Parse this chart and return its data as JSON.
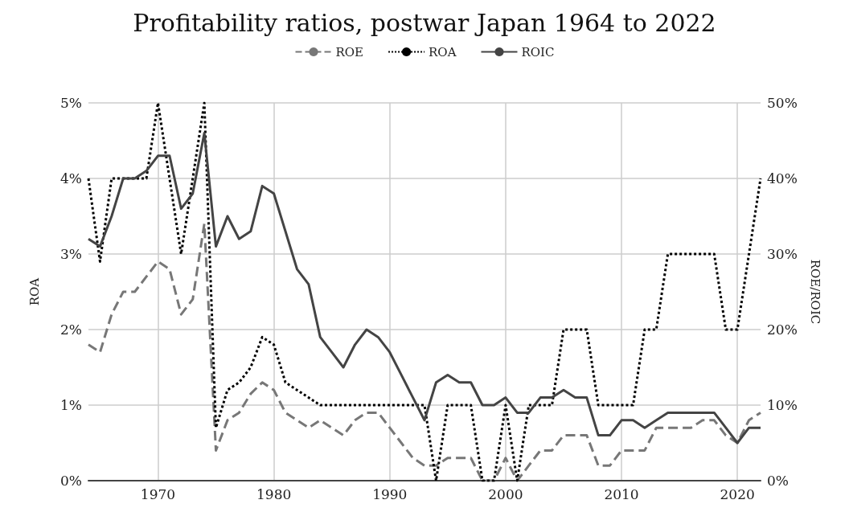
{
  "chart_data": {
    "type": "line",
    "title": "Profitability ratios, postwar Japan 1964 to 2022",
    "ylabel": "ROA",
    "y2label": "ROE/ROIC",
    "x": [
      1964,
      1965,
      1966,
      1967,
      1968,
      1969,
      1970,
      1971,
      1972,
      1973,
      1974,
      1975,
      1976,
      1977,
      1978,
      1979,
      1980,
      1981,
      1982,
      1983,
      1984,
      1985,
      1986,
      1987,
      1988,
      1989,
      1990,
      1991,
      1992,
      1993,
      1994,
      1995,
      1996,
      1997,
      1998,
      1999,
      2000,
      2001,
      2002,
      2003,
      2004,
      2005,
      2006,
      2007,
      2008,
      2009,
      2010,
      2011,
      2012,
      2013,
      2014,
      2015,
      2016,
      2017,
      2018,
      2019,
      2020,
      2021,
      2022
    ],
    "series": [
      {
        "name": "ROE",
        "color": "#777777",
        "line_style": "dashed",
        "axis": "y2",
        "values": [
          18,
          17,
          22,
          25,
          25,
          27,
          29,
          28,
          22,
          24,
          34,
          4,
          8,
          9,
          11.5,
          13,
          12,
          9,
          8,
          7,
          8,
          7,
          6,
          8,
          9,
          9,
          7,
          5,
          3,
          2,
          2,
          3,
          3,
          3,
          0,
          0,
          3,
          0,
          2,
          4,
          4,
          6,
          6,
          6,
          2,
          2,
          4,
          4,
          4,
          7,
          7,
          7,
          7,
          8,
          8,
          6,
          5,
          8,
          9
        ]
      },
      {
        "name": "ROA",
        "color": "#000000",
        "line_style": "dotted",
        "values": [
          4,
          2.9,
          4,
          4,
          4,
          4,
          5,
          4,
          3,
          4,
          5,
          0.7,
          1.2,
          1.3,
          1.5,
          1.9,
          1.8,
          1.3,
          1.2,
          1.1,
          1,
          1,
          1,
          1,
          1,
          1,
          1,
          1,
          1,
          1,
          0,
          1,
          1,
          1,
          0,
          0,
          1,
          0,
          1,
          1,
          1,
          2,
          2,
          2,
          1,
          1,
          1,
          1,
          2,
          2,
          3,
          3,
          3,
          3,
          3,
          2,
          2,
          3,
          4
        ]
      },
      {
        "name": "ROIC",
        "color": "#444444",
        "line_style": "solid",
        "axis": "y2",
        "values": [
          32,
          31,
          35,
          40,
          40,
          41,
          43,
          43,
          36,
          38,
          46,
          31,
          35,
          32,
          33,
          39,
          38,
          33,
          28,
          26,
          19,
          17,
          15,
          18,
          20,
          19,
          17,
          14,
          11,
          8,
          13,
          14,
          13,
          13,
          10,
          10,
          11,
          9,
          9,
          11,
          11,
          12,
          11,
          11,
          6,
          6,
          8,
          8,
          7,
          8,
          9,
          9,
          9,
          9,
          9,
          7,
          5,
          7,
          7
        ]
      }
    ],
    "xlim": [
      1964,
      2022
    ],
    "xticks": [
      1970,
      1980,
      1990,
      2000,
      2010,
      2020
    ],
    "ylim": [
      0,
      5
    ],
    "yticks": [
      {
        "value": 0,
        "label": "0%"
      },
      {
        "value": 1,
        "label": "1%"
      },
      {
        "value": 2,
        "label": "2%"
      },
      {
        "value": 3,
        "label": "3%"
      },
      {
        "value": 4,
        "label": "4%"
      },
      {
        "value": 5,
        "label": "5%"
      }
    ],
    "y2lim": [
      0,
      50
    ],
    "y2ticks": [
      {
        "value": 0,
        "label": "0%"
      },
      {
        "value": 10,
        "label": "10%"
      },
      {
        "value": 20,
        "label": "20%"
      },
      {
        "value": 30,
        "label": "30%"
      },
      {
        "value": 40,
        "label": "40%"
      },
      {
        "value": 50,
        "label": "50%"
      }
    ],
    "grid": true,
    "legend": "top",
    "marker": "none"
  }
}
